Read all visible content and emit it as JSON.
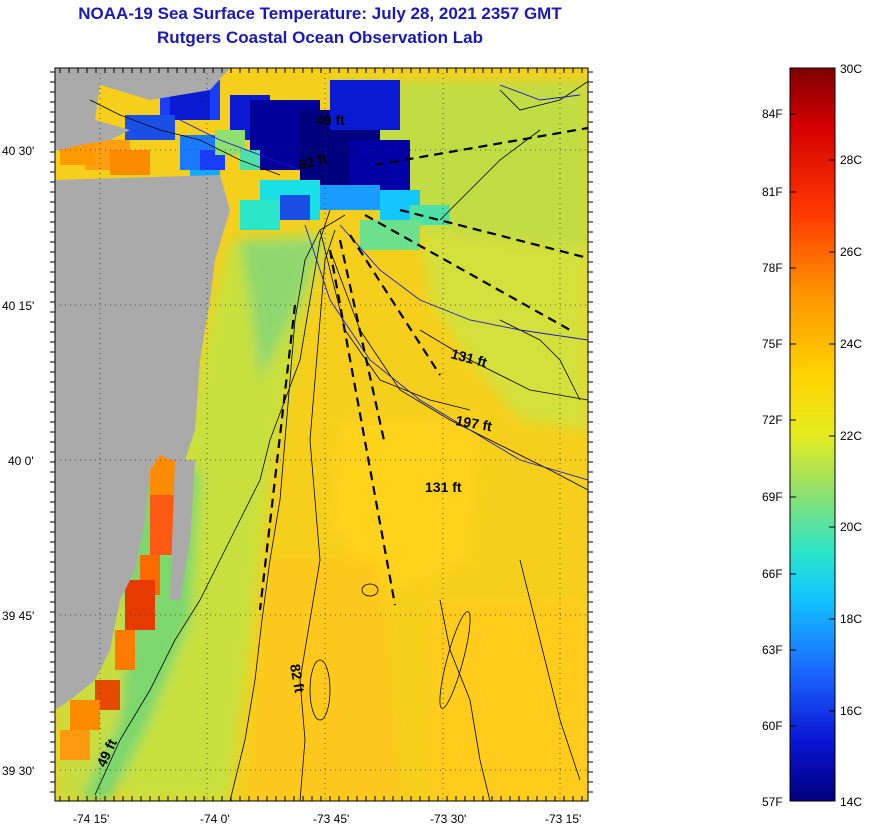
{
  "header": {
    "title": "NOAA-19 Sea Surface Temperature:  July 28, 2021 2357 GMT",
    "subtitle": "Rutgers Coastal Ocean Observation Lab"
  },
  "axes": {
    "lat_ticks": [
      "40 30'",
      "40 15'",
      "40 0'",
      "39 45'",
      "39 30'"
    ],
    "lon_ticks": [
      "-74 15'",
      "-74 0'",
      "-73 45'",
      "-73 30'",
      "-73 15'"
    ]
  },
  "depth_labels": [
    "49 ft",
    "82 ft",
    "131 ft",
    "197 ft",
    "131 ft",
    "82 ft",
    "49 ft"
  ],
  "colorbar": {
    "fahrenheit": [
      "84F",
      "81F",
      "78F",
      "75F",
      "72F",
      "69F",
      "66F",
      "63F",
      "60F",
      "57F"
    ],
    "celsius": [
      "30C",
      "28C",
      "26C",
      "24C",
      "22C",
      "20C",
      "18C",
      "16C",
      "14C"
    ],
    "colors": [
      "#7f0000",
      "#d40000",
      "#ff3a00",
      "#ff8c00",
      "#ffd200",
      "#f5f01e",
      "#a6e65a",
      "#4fe0a8",
      "#1ae0e6",
      "#1a9cff",
      "#1a4fe6",
      "#0000a6",
      "#00007f"
    ]
  },
  "map_colors": {
    "land": "#aaaaaa",
    "water_warm": "#f5d21e",
    "water_mid": "#c8e03c",
    "water_cool": "#7ddc6e",
    "cold_upwelling": "#0a1ad2",
    "coastal_hot": "#ff5a14"
  }
}
